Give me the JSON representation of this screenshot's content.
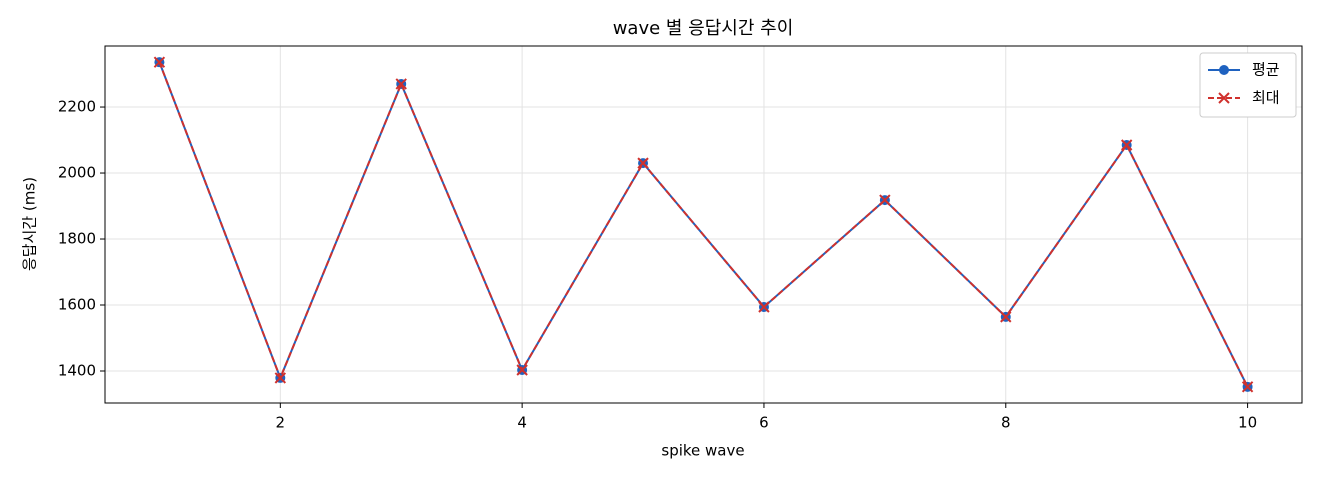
{
  "chart_data": {
    "type": "line",
    "title": "wave 별 응답시간 추이",
    "x_label": "spike wave",
    "y_label": "응답시간 (ms)",
    "x": [
      1,
      2,
      3,
      4,
      5,
      6,
      7,
      8,
      9,
      10
    ],
    "series": [
      {
        "name": "평균",
        "color": "#1f62c0",
        "marker": "circle",
        "linestyle": "solid",
        "values": [
          2336,
          1379,
          2270,
          1403,
          2030,
          1594,
          1918,
          1564,
          2085,
          1352
        ]
      },
      {
        "name": "최대",
        "color": "#d0312d",
        "marker": "x",
        "linestyle": "dashed",
        "values": [
          2336,
          1379,
          2270,
          1403,
          2030,
          1594,
          1918,
          1564,
          2085,
          1352
        ]
      }
    ],
    "xlim": [
      0.55,
      10.45
    ],
    "xticks": [
      2,
      4,
      6,
      8,
      10
    ],
    "ylim": [
      1303,
      2385
    ],
    "yticks": [
      1400,
      1600,
      1800,
      2000,
      2200
    ],
    "grid": true,
    "legend": "upper right"
  }
}
